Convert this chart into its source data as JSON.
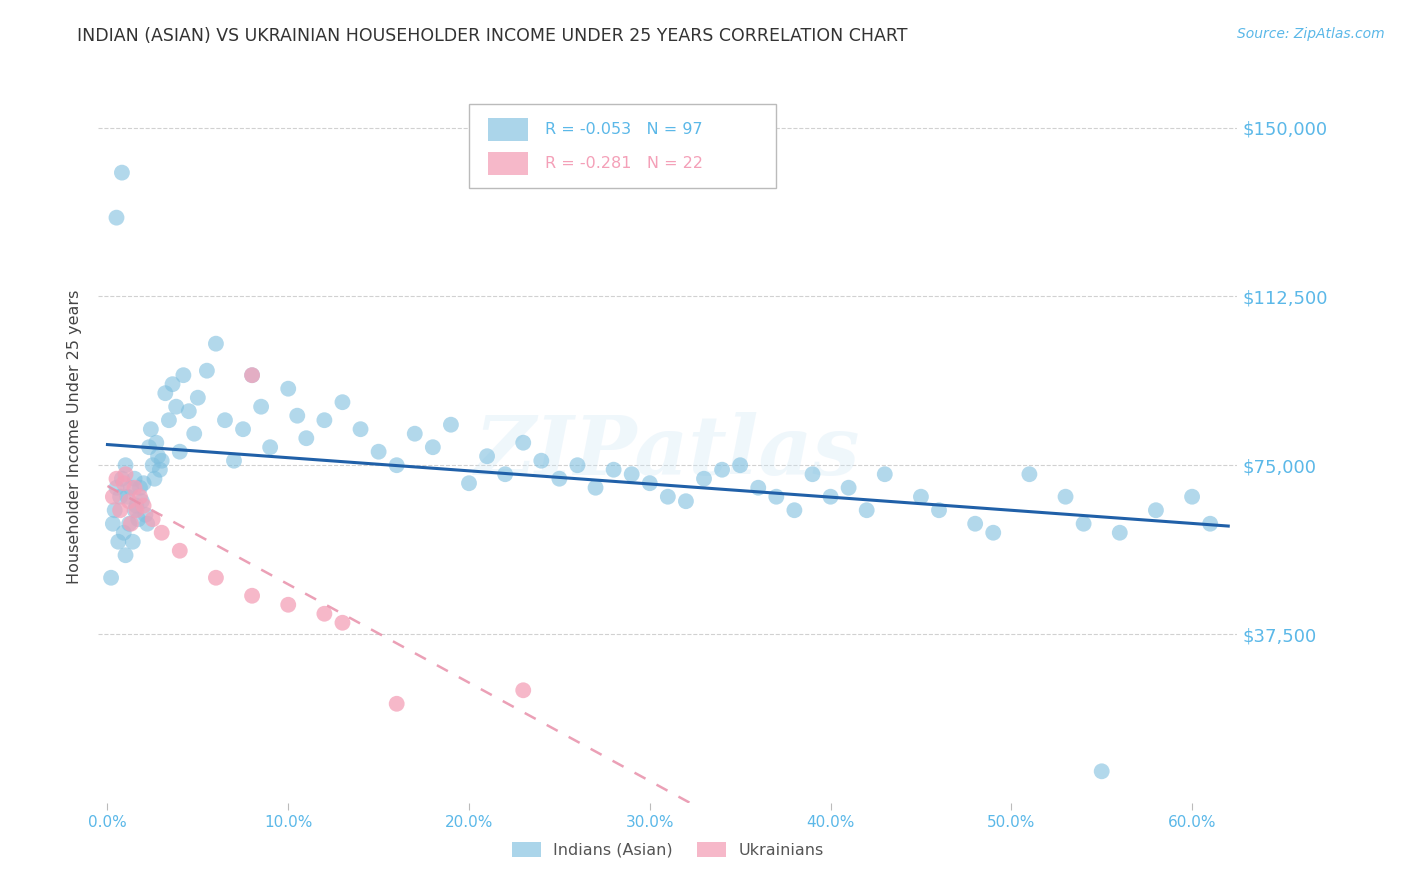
{
  "title": "INDIAN (ASIAN) VS UKRAINIAN HOUSEHOLDER INCOME UNDER 25 YEARS CORRELATION CHART",
  "source": "Source: ZipAtlas.com",
  "ylabel": "Householder Income Under 25 years",
  "ytick_labels": [
    "$37,500",
    "$75,000",
    "$112,500",
    "$150,000"
  ],
  "ytick_vals": [
    37500,
    75000,
    112500,
    150000
  ],
  "xlabel_ticks": [
    "0.0%",
    "10.0%",
    "20.0%",
    "30.0%",
    "40.0%",
    "50.0%",
    "60.0%"
  ],
  "xlabel_vals": [
    0.0,
    0.1,
    0.2,
    0.3,
    0.4,
    0.5,
    0.6
  ],
  "ylim": [
    0,
    162500
  ],
  "xlim": [
    -0.005,
    0.625
  ],
  "watermark": "ZIPatlas",
  "legend_r1": "R = -0.053",
  "legend_n1": "N = 97",
  "legend_r2": "R = -0.281",
  "legend_n2": "N = 22",
  "indian_color": "#7fbfdf",
  "ukrainian_color": "#f4a0b8",
  "indian_line_color": "#2060a8",
  "ukrainian_line_color": "#e890aa",
  "background_color": "#ffffff",
  "grid_color": "#cccccc",
  "tick_color": "#5bb8e8",
  "title_color": "#333333",
  "source_color": "#5bb8e8",
  "indian_x": [
    0.003,
    0.004,
    0.005,
    0.006,
    0.007,
    0.008,
    0.009,
    0.01,
    0.01,
    0.011,
    0.012,
    0.013,
    0.014,
    0.015,
    0.015,
    0.016,
    0.017,
    0.018,
    0.019,
    0.02,
    0.021,
    0.022,
    0.023,
    0.024,
    0.025,
    0.026,
    0.027,
    0.028,
    0.029,
    0.03,
    0.032,
    0.034,
    0.036,
    0.038,
    0.04,
    0.042,
    0.045,
    0.048,
    0.05,
    0.055,
    0.06,
    0.065,
    0.07,
    0.075,
    0.08,
    0.085,
    0.09,
    0.1,
    0.105,
    0.11,
    0.12,
    0.13,
    0.14,
    0.15,
    0.16,
    0.17,
    0.18,
    0.19,
    0.2,
    0.21,
    0.22,
    0.23,
    0.24,
    0.25,
    0.26,
    0.27,
    0.28,
    0.29,
    0.3,
    0.31,
    0.32,
    0.33,
    0.34,
    0.35,
    0.36,
    0.37,
    0.38,
    0.39,
    0.4,
    0.41,
    0.42,
    0.43,
    0.45,
    0.46,
    0.48,
    0.49,
    0.51,
    0.53,
    0.54,
    0.56,
    0.58,
    0.6,
    0.61,
    0.005,
    0.008,
    0.55,
    0.002
  ],
  "indian_y": [
    62000,
    65000,
    70000,
    58000,
    68000,
    72000,
    60000,
    75000,
    55000,
    68000,
    62000,
    70000,
    58000,
    72000,
    65000,
    66000,
    63000,
    70000,
    67000,
    71000,
    64000,
    62000,
    79000,
    83000,
    75000,
    72000,
    80000,
    77000,
    74000,
    76000,
    91000,
    85000,
    93000,
    88000,
    78000,
    95000,
    87000,
    82000,
    90000,
    96000,
    102000,
    85000,
    76000,
    83000,
    95000,
    88000,
    79000,
    92000,
    86000,
    81000,
    85000,
    89000,
    83000,
    78000,
    75000,
    82000,
    79000,
    84000,
    71000,
    77000,
    73000,
    80000,
    76000,
    72000,
    75000,
    70000,
    74000,
    73000,
    71000,
    68000,
    67000,
    72000,
    74000,
    75000,
    70000,
    68000,
    65000,
    73000,
    68000,
    70000,
    65000,
    73000,
    68000,
    65000,
    62000,
    60000,
    73000,
    68000,
    62000,
    60000,
    65000,
    68000,
    62000,
    130000,
    140000,
    7000,
    50000
  ],
  "ukrainian_x": [
    0.003,
    0.005,
    0.007,
    0.009,
    0.01,
    0.012,
    0.013,
    0.015,
    0.016,
    0.018,
    0.02,
    0.025,
    0.03,
    0.04,
    0.06,
    0.08,
    0.1,
    0.12,
    0.13,
    0.16,
    0.23,
    0.08
  ],
  "ukrainian_y": [
    68000,
    72000,
    65000,
    71000,
    73000,
    67000,
    62000,
    70000,
    65000,
    68000,
    66000,
    63000,
    60000,
    56000,
    50000,
    46000,
    44000,
    42000,
    40000,
    22000,
    25000,
    95000
  ]
}
